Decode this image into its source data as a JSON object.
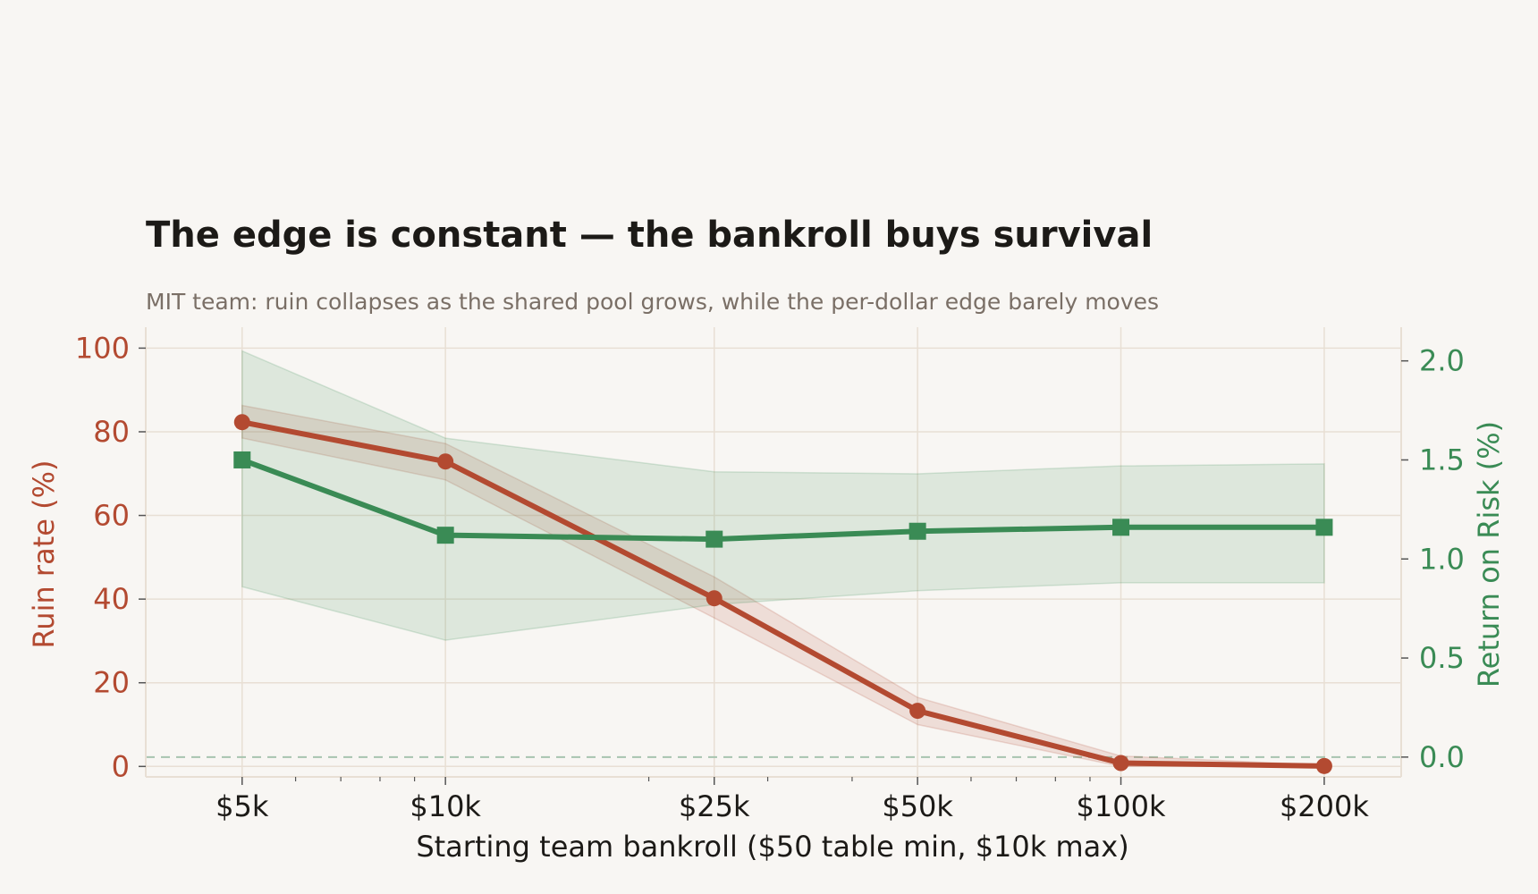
{
  "chart_data": {
    "type": "line",
    "title": "The edge is constant — the bankroll buys survival",
    "subtitle": "MIT team: ruin collapses as the shared pool grows, while the per-dollar edge barely moves",
    "x": [
      5000,
      10000,
      25000,
      50000,
      100000,
      200000
    ],
    "x_tick_labels": [
      "$5k",
      "$10k",
      "$25k",
      "$50k",
      "$100k",
      "$200k"
    ],
    "x_scale": "log",
    "xlabel": "Starting team bankroll  ($50 table min, $10k max)",
    "y_left": {
      "label": "Ruin rate (%)",
      "lim": [
        -2.5,
        105
      ],
      "ticks": [
        0,
        20,
        40,
        60,
        80,
        100
      ]
    },
    "y_right": {
      "label": "Return on Risk (%)",
      "lim": [
        -0.1,
        2.17
      ],
      "ticks": [
        "0.0",
        "0.5",
        "1.0",
        "1.5",
        "2.0"
      ]
    },
    "series": [
      {
        "axis": "left",
        "marker": "circle",
        "color": "#b34a31",
        "values": [
          82.3,
          72.9,
          40.2,
          13.3,
          0.8,
          0.1
        ],
        "band_low": [
          78.5,
          68.5,
          35.5,
          10.0,
          0.0,
          0.0
        ],
        "band_high": [
          86.3,
          77.2,
          45.3,
          16.5,
          2.5,
          0.3
        ]
      },
      {
        "axis": "right",
        "marker": "square",
        "color": "#3a8b55",
        "values": [
          1.5,
          1.12,
          1.1,
          1.14,
          1.16,
          1.16
        ],
        "band_low": [
          0.86,
          0.59,
          0.77,
          0.84,
          0.88,
          0.88
        ],
        "band_high": [
          2.05,
          1.61,
          1.44,
          1.43,
          1.47,
          1.48
        ]
      }
    ],
    "reference_line": {
      "axis": "right",
      "value": 0.0,
      "style": "dashed"
    },
    "grid": true,
    "colors": {
      "background": "#f8f6f3",
      "grid": "#e8dfd4",
      "ruin": "#b34a31",
      "ror": "#3a8b55"
    }
  }
}
